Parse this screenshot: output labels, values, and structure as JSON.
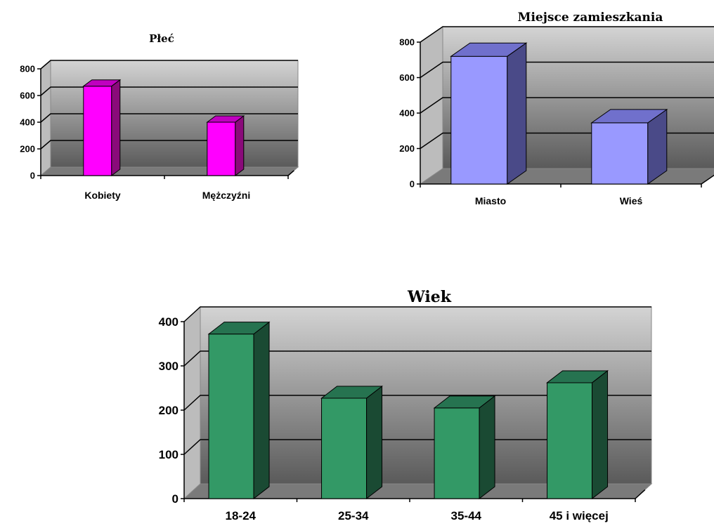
{
  "chart_data": [
    {
      "id": "plec",
      "type": "bar",
      "title": "Płeć",
      "categories": [
        "Kobiety",
        "Mężczyźni"
      ],
      "values": [
        670,
        400
      ],
      "ylim": [
        0,
        800
      ],
      "yticks": [
        0,
        200,
        400,
        600,
        800
      ],
      "bar_color": "#FF00FF",
      "bar_side_color": "#8A0A7A",
      "bar_top_color": "#C000C0",
      "grid": true,
      "xlabel": "",
      "ylabel": ""
    },
    {
      "id": "miejsce",
      "type": "bar",
      "title": "Miejsce zamieszkania",
      "categories": [
        "Miasto",
        "Wieś"
      ],
      "values": [
        720,
        345
      ],
      "ylim": [
        0,
        800
      ],
      "yticks": [
        0,
        200,
        400,
        600,
        800
      ],
      "bar_color": "#9999FF",
      "bar_side_color": "#4A4A88",
      "bar_top_color": "#7070CC",
      "grid": true,
      "xlabel": "",
      "ylabel": ""
    },
    {
      "id": "wiek",
      "type": "bar",
      "title": "Wiek",
      "categories": [
        "18-24",
        "25-34",
        "35-44",
        "45 i więcej"
      ],
      "values": [
        372,
        227,
        205,
        262
      ],
      "ylim": [
        0,
        400
      ],
      "yticks": [
        0,
        100,
        200,
        300,
        400
      ],
      "bar_color": "#339966",
      "bar_side_color": "#1A4A33",
      "bar_top_color": "#267350",
      "grid": true,
      "xlabel": "",
      "ylabel": ""
    }
  ]
}
